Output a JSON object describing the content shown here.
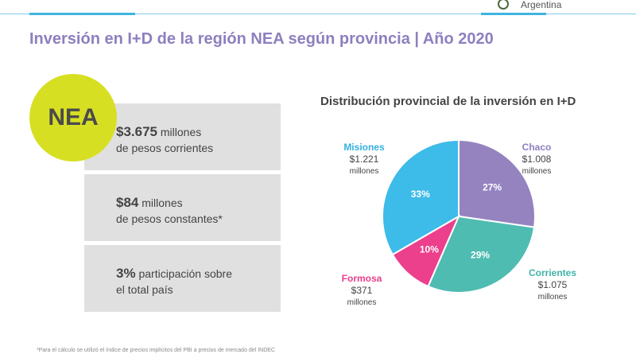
{
  "header": {
    "logo_text": "Argentina"
  },
  "title": "Inversión en I+D de la región NEA según provincia | Año 2020",
  "region_badge": "NEA",
  "stats": [
    {
      "value": "$3.675",
      "text1": " millones",
      "text2": "de pesos corrientes"
    },
    {
      "value": "$84",
      "text1": " millones",
      "text2": "de pesos constantes*"
    },
    {
      "value": "3%",
      "text1": " participación sobre",
      "text2": "el total país"
    }
  ],
  "footnote": "*Para el cálculo se utilizó el índice de precios implícitos del PBI a precios de mercado del INDEC",
  "chart_data": {
    "type": "pie",
    "title": "Distribución provincial de la inversión en I+D",
    "slices": [
      {
        "name": "Chaco",
        "amount": "$1.008",
        "unit": "millones",
        "percent": 27,
        "label": "27%",
        "color": "#9583c0"
      },
      {
        "name": "Corrientes",
        "amount": "$1.075",
        "unit": "millones",
        "percent": 29,
        "label": "29%",
        "color": "#4fbcb2"
      },
      {
        "name": "Formosa",
        "amount": "$371",
        "unit": "millones",
        "percent": 10,
        "label": "10%",
        "color": "#ec3f8c"
      },
      {
        "name": "Misiones",
        "amount": "$1.221",
        "unit": "millones",
        "percent": 33,
        "label": "33%",
        "color": "#3dbbe9"
      }
    ]
  }
}
